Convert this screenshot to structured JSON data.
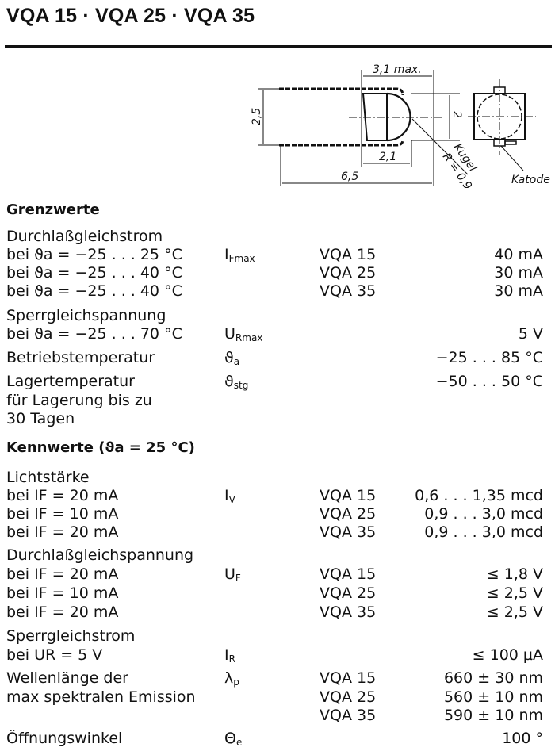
{
  "title": "VQA 15 · VQA 25 · VQA 35",
  "drawing": {
    "dim_length_max": "3,1 max.",
    "dim_height": "2,5",
    "dim_body": "2",
    "dim_lens": "2,1",
    "dim_total": "6,5",
    "label_sphere": "Kugel",
    "label_radius": "R = 0,9",
    "label_cathode": "Katode"
  },
  "sections": [
    {
      "heading": "Grenzwerte",
      "rows": [
        {
          "label": "Durchlaßgleichstrom"
        },
        {
          "label": "bei ϑa = −25 . . . 25 °C",
          "symbol": "I",
          "symbol_sub": "Fmax",
          "type": "VQA 15",
          "value": "40 mA"
        },
        {
          "label": "bei ϑa = −25 . . . 40 °C",
          "type": "VQA 25",
          "value": "30 mA"
        },
        {
          "label": "bei ϑa = −25 . . . 40 °C",
          "type": "VQA 35",
          "value": "30 mA"
        },
        {
          "label": "Sperrgleichspannung"
        },
        {
          "label": "bei ϑa = −25 . . . 70 °C",
          "symbol": "U",
          "symbol_sub": "Rmax",
          "value": "5 V"
        },
        {
          "label": "Betriebstemperatur",
          "symbol": "ϑ",
          "symbol_sub": "a",
          "value": "−25 . . . 85 °C"
        },
        {
          "label": "Lagertemperatur",
          "symbol": "ϑ",
          "symbol_sub": "stg",
          "value": "−50 . . . 50 °C"
        },
        {
          "label": "für Lagerung bis zu"
        },
        {
          "label": "30 Tagen"
        }
      ]
    },
    {
      "heading": "Kennwerte (ϑa = 25 °C)",
      "rows": [
        {
          "label": "Lichtstärke"
        },
        {
          "label": "bei IF = 20 mA",
          "symbol": "I",
          "symbol_sub": "V",
          "type": "VQA 15",
          "value": "0,6 . . . 1,35 mcd"
        },
        {
          "label": "bei IF = 10 mA",
          "type": "VQA 25",
          "value": "0,9 . . . 3,0 mcd"
        },
        {
          "label": "bei IF = 20 mA",
          "type": "VQA 35",
          "value": "0,9 . . . 3,0 mcd"
        },
        {
          "label": "Durchlaßgleichspannung"
        },
        {
          "label": "bei IF = 20 mA",
          "symbol": "U",
          "symbol_sub": "F",
          "type": "VQA 15",
          "value": "≤ 1,8 V"
        },
        {
          "label": "bei IF = 10 mA",
          "type": "VQA 25",
          "value": "≤ 2,5 V"
        },
        {
          "label": "bei IF = 20 mA",
          "type": "VQA 35",
          "value": "≤ 2,5 V"
        },
        {
          "label": "Sperrgleichstrom"
        },
        {
          "label": "bei UR = 5 V",
          "symbol": "I",
          "symbol_sub": "R",
          "value": "≤ 100 µA"
        },
        {
          "label": "Wellenlänge der",
          "symbol": "λ",
          "symbol_sub": "p",
          "type": "VQA 15",
          "value": "660 ± 30 nm"
        },
        {
          "label": "max spektralen Emission",
          "type": "VQA 25",
          "value": "560 ± 10 nm"
        },
        {
          "type": "VQA 35",
          "value": "590 ± 10 nm"
        },
        {
          "label": "Öffnungswinkel",
          "symbol": "Θ",
          "symbol_sub": "e",
          "value": "100 °"
        }
      ]
    }
  ]
}
